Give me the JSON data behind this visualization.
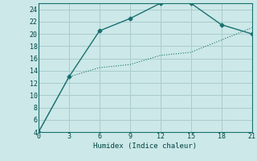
{
  "xlabel": "Humidex (Indice chaleur)",
  "background_color": "#cce8e8",
  "grid_color": "#aacccc",
  "line_color": "#1a7070",
  "xlim": [
    0,
    21
  ],
  "ylim": [
    4,
    25
  ],
  "xticks": [
    0,
    3,
    6,
    9,
    12,
    15,
    18,
    21
  ],
  "yticks": [
    4,
    6,
    8,
    10,
    12,
    14,
    16,
    18,
    20,
    22,
    24
  ],
  "line1_x": [
    0,
    3,
    6,
    9,
    12,
    15,
    18,
    21
  ],
  "line1_y": [
    4,
    13,
    20.5,
    22.5,
    25,
    25,
    21.5,
    20
  ],
  "line2_x": [
    0,
    3,
    6,
    9,
    12,
    15,
    18,
    21
  ],
  "line2_y": [
    4,
    13,
    14.5,
    15,
    16.5,
    17,
    19,
    21
  ]
}
